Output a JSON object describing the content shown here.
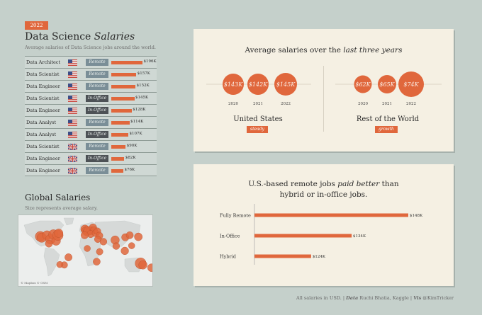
{
  "header": {
    "year_badge": "2022",
    "title_plain": "Data Science ",
    "title_italic": "Salaries",
    "subtitle": "Average salaries of Data Science jobs around the world."
  },
  "salary_table": {
    "rows": [
      {
        "job": "Data Architect",
        "country": "us",
        "mode": "Remote",
        "value": 196,
        "label": "$196K"
      },
      {
        "job": "Data Scientist",
        "country": "us",
        "mode": "Remote",
        "value": 157,
        "label": "$157K"
      },
      {
        "job": "Data Engineer",
        "country": "us",
        "mode": "Remote",
        "value": 152,
        "label": "$152K"
      },
      {
        "job": "Data Scientist",
        "country": "us",
        "mode": "In-Office",
        "value": 145,
        "label": "$145K"
      },
      {
        "job": "Data Engineer",
        "country": "us",
        "mode": "In-Office",
        "value": 128,
        "label": "$128K"
      },
      {
        "job": "Data Analyst",
        "country": "us",
        "mode": "Remote",
        "value": 114,
        "label": "$114K"
      },
      {
        "job": "Data Analyst",
        "country": "us",
        "mode": "In-Office",
        "value": 107,
        "label": "$107K"
      },
      {
        "job": "Data Scientist",
        "country": "gb",
        "mode": "Remote",
        "value": 90,
        "label": "$90K"
      },
      {
        "job": "Data Engineer",
        "country": "gb",
        "mode": "In-Office",
        "value": 82,
        "label": "$82K"
      },
      {
        "job": "Data Engineer",
        "country": "gb",
        "mode": "Remote",
        "value": 76,
        "label": "$76K"
      }
    ],
    "max_value": 196
  },
  "map": {
    "title": "Global Salaries",
    "subtitle": "Size represents average salary.",
    "attribution": "© Mapbox © OSM",
    "points": [
      {
        "lon": -122,
        "lat": 37,
        "value": 130
      },
      {
        "lon": -118,
        "lat": 34,
        "value": 110
      },
      {
        "lon": -104,
        "lat": 40,
        "value": 100
      },
      {
        "lon": -95,
        "lat": 30,
        "value": 120
      },
      {
        "lon": -87,
        "lat": 42,
        "value": 115
      },
      {
        "lon": -80,
        "lat": 26,
        "value": 95
      },
      {
        "lon": -75,
        "lat": 40,
        "value": 140
      },
      {
        "lon": -73,
        "lat": 45,
        "value": 90
      },
      {
        "lon": -99,
        "lat": 19,
        "value": 55
      },
      {
        "lon": -47,
        "lat": -15,
        "value": 60
      },
      {
        "lon": -58,
        "lat": -34,
        "value": 45
      },
      {
        "lon": -70,
        "lat": -33,
        "value": 40
      },
      {
        "lon": -3,
        "lat": 55,
        "value": 85
      },
      {
        "lon": 0,
        "lat": 51,
        "value": 90
      },
      {
        "lon": 2,
        "lat": 48,
        "value": 70
      },
      {
        "lon": 10,
        "lat": 51,
        "value": 80
      },
      {
        "lon": 13,
        "lat": 52,
        "value": 75
      },
      {
        "lon": 4,
        "lat": 52,
        "value": 70
      },
      {
        "lon": 18,
        "lat": 59,
        "value": 65
      },
      {
        "lon": 21,
        "lat": 52,
        "value": 55
      },
      {
        "lon": 12,
        "lat": 43,
        "value": 60
      },
      {
        "lon": -4,
        "lat": 40,
        "value": 60
      },
      {
        "lon": 25,
        "lat": 45,
        "value": 50
      },
      {
        "lon": 30,
        "lat": 50,
        "value": 50
      },
      {
        "lon": 35,
        "lat": 39,
        "value": 55
      },
      {
        "lon": 31,
        "lat": 30,
        "value": 45
      },
      {
        "lon": 46,
        "lat": 24,
        "value": 50
      },
      {
        "lon": 77,
        "lat": 28,
        "value": 85
      },
      {
        "lon": 80,
        "lat": 13,
        "value": 50
      },
      {
        "lon": 104,
        "lat": 35,
        "value": 60
      },
      {
        "lon": 116,
        "lat": 40,
        "value": 55
      },
      {
        "lon": 121,
        "lat": 14,
        "value": 40
      },
      {
        "lon": 103,
        "lat": 1,
        "value": 65
      },
      {
        "lon": 139,
        "lat": 36,
        "value": 70
      },
      {
        "lon": 3,
        "lat": 7,
        "value": 40
      },
      {
        "lon": 36,
        "lat": -1,
        "value": 45
      },
      {
        "lon": 28,
        "lat": -26,
        "value": 55
      },
      {
        "lon": 145,
        "lat": -30,
        "value": 160
      },
      {
        "lon": 151,
        "lat": -34,
        "value": 85
      },
      {
        "lon": 174,
        "lat": -41,
        "value": 70
      }
    ]
  },
  "trend_card": {
    "title_plain": "Average salaries over the ",
    "title_italic": "last three years",
    "regions": [
      {
        "name": "United States",
        "tag": "steady",
        "years": [
          "2020",
          "2021",
          "2022"
        ],
        "values": [
          143,
          142,
          145
        ],
        "labels": [
          "$143K",
          "$142K",
          "$145K"
        ]
      },
      {
        "name": "Rest of the World",
        "tag": "growth",
        "years": [
          "2020",
          "2021",
          "2022"
        ],
        "values": [
          62,
          65,
          74
        ],
        "labels": [
          "$62K",
          "$65K",
          "$74K"
        ]
      }
    ]
  },
  "remote_card": {
    "title_line1_plain": "U.S.-based remote jobs ",
    "title_line1_italic": "paid better",
    "title_line1_end": " than",
    "title_line2": "hybrid or in-office jobs."
  },
  "chart_data": [
    {
      "type": "bar",
      "title": "U.S.-based remote jobs paid better than hybrid or in-office jobs.",
      "categories": [
        "Fully Remote",
        "In-Office",
        "Hybrid"
      ],
      "values": [
        148,
        134,
        124
      ],
      "labels": [
        "$148K",
        "$134K",
        "$124K"
      ],
      "xlim": [
        110,
        150
      ]
    },
    {
      "type": "bar",
      "title": "Average salaries over the last three years",
      "categories": [
        "2020",
        "2021",
        "2022"
      ],
      "series": [
        {
          "name": "United States",
          "values": [
            143,
            142,
            145
          ]
        },
        {
          "name": "Rest of the World",
          "values": [
            62,
            65,
            74
          ]
        }
      ]
    }
  ],
  "footer": {
    "prefix": "All salaries in USD.  |  ",
    "data_label": "Data",
    "data_value": "  Ruchi Bhatia, Kaggle  |  ",
    "vis_label": "Vis",
    "vis_value": "  @KimTricker"
  },
  "colors": {
    "accent": "#e0673c",
    "remote_pill": "#7a8e97",
    "office_pill": "#4d5256",
    "background": "#c5d0cb",
    "card": "#f5f0e3"
  }
}
